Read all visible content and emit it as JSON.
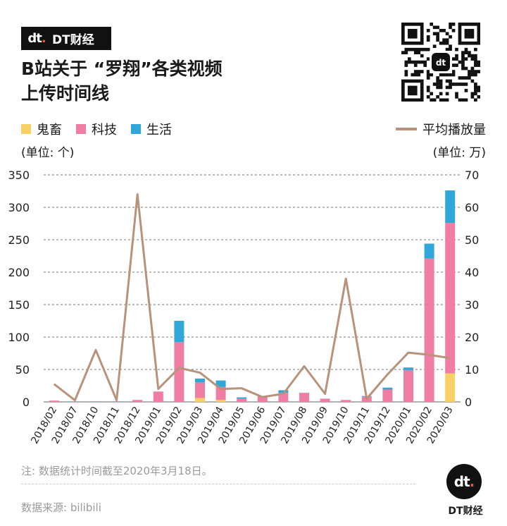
{
  "brand": {
    "badge_logo": "dt",
    "badge_text": "DT财经",
    "corner_logo": "dt",
    "corner_name": "DT财经",
    "qr_logo": "dt"
  },
  "title_line1": "B站关于 “罗翔”各类视频",
  "title_line2": "上传时间线",
  "legend": {
    "items": [
      "鬼畜",
      "科技",
      "生活"
    ],
    "line_label": "平均播放量"
  },
  "units": {
    "left": "(单位: 个)",
    "right": "(单位: 万)"
  },
  "colors": {
    "guichu": "#f7d066",
    "keji": "#f07ea3",
    "shenghuo": "#2fa7d8",
    "line": "#b8927a",
    "grid": "#777777"
  },
  "chart_data": {
    "type": "bar",
    "stacked": true,
    "categories": [
      "2018/02",
      "2018/07",
      "2018/10",
      "2018/11",
      "2018/12",
      "2019/01",
      "2019/02",
      "2019/03",
      "2019/04",
      "2019/05",
      "2019/06",
      "2019/07",
      "2019/08",
      "2019/09",
      "2019/10",
      "2019/11",
      "2019/12",
      "2020/01",
      "2020/02",
      "2020/03"
    ],
    "series": [
      {
        "name": "鬼畜",
        "axis": "left",
        "values": [
          0,
          0,
          0,
          0,
          0,
          0,
          0,
          6,
          3,
          0,
          0,
          0,
          0,
          0,
          0,
          0,
          0,
          0,
          0,
          44
        ]
      },
      {
        "name": "科技",
        "axis": "left",
        "values": [
          2,
          1,
          1,
          1,
          3,
          16,
          92,
          24,
          20,
          5,
          9,
          14,
          14,
          5,
          3,
          8,
          19,
          49,
          221,
          232
        ]
      },
      {
        "name": "生活",
        "axis": "left",
        "values": [
          0,
          0,
          0,
          0,
          0,
          0,
          33,
          6,
          10,
          2,
          0,
          4,
          0,
          0,
          0,
          1,
          3,
          4,
          23,
          50
        ]
      },
      {
        "name": "平均播放量",
        "axis": "right",
        "type": "line",
        "values": [
          5.5,
          0.5,
          16,
          0.5,
          64,
          4,
          10.5,
          9,
          4,
          4.2,
          1.5,
          2.5,
          11,
          2.5,
          38,
          1,
          8.5,
          15.2,
          14.5,
          13.5
        ]
      }
    ],
    "ylim": [
      0,
      350
    ],
    "y_ticks": [
      0,
      50,
      100,
      150,
      200,
      250,
      300,
      350
    ],
    "y2lim": [
      0,
      70
    ],
    "y2_ticks": [
      0,
      10,
      20,
      30,
      40,
      50,
      60,
      70
    ],
    "grid": true,
    "legend_position": "top"
  },
  "footnote": "注: 数据统计时间截至2020年3月18日。",
  "source": "数据来源: bilibili"
}
